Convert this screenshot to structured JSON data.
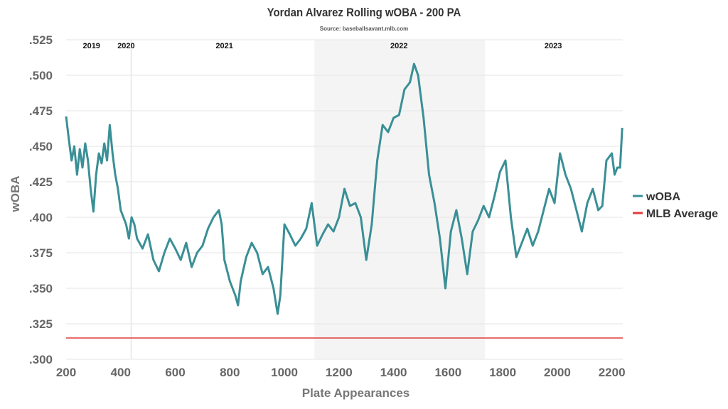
{
  "chart_data": {
    "type": "line",
    "title": "Yordan Alvarez Rolling wOBA - 200 PA",
    "subtitle": "Source: baseballsavant.mlb.com",
    "xlabel": "Plate Appearances",
    "ylabel": "wOBA",
    "xlim": [
      200,
      2240
    ],
    "ylim": [
      0.3,
      0.525
    ],
    "xticks": [
      200,
      400,
      600,
      800,
      1000,
      1200,
      1400,
      1600,
      1800,
      2000,
      2200
    ],
    "yticks": [
      0.3,
      0.325,
      0.35,
      0.375,
      0.4,
      0.425,
      0.45,
      0.475,
      0.5,
      0.525
    ],
    "ytick_labels": [
      ".300",
      ".325",
      ".350",
      ".375",
      ".400",
      ".425",
      ".450",
      ".475",
      ".500",
      ".525"
    ],
    "grid": "horizontal",
    "legend": "right",
    "season_labels": [
      {
        "label": "2019",
        "x": 293
      },
      {
        "label": "2020",
        "x": 420
      },
      {
        "label": "2021",
        "x": 780
      },
      {
        "label": "2022",
        "x": 1420
      },
      {
        "label": "2023",
        "x": 1985
      }
    ],
    "shaded_ranges": [
      {
        "from": 436,
        "to": 442,
        "color": "#eeeeee"
      },
      {
        "from": 1110,
        "to": 1735,
        "color": "#f4f4f4"
      }
    ],
    "series": [
      {
        "name": "wOBA",
        "color": "#3a8f96",
        "points": [
          [
            200,
            0.471
          ],
          [
            210,
            0.455
          ],
          [
            220,
            0.44
          ],
          [
            230,
            0.45
          ],
          [
            240,
            0.43
          ],
          [
            250,
            0.448
          ],
          [
            260,
            0.435
          ],
          [
            270,
            0.452
          ],
          [
            280,
            0.44
          ],
          [
            290,
            0.42
          ],
          [
            300,
            0.404
          ],
          [
            310,
            0.43
          ],
          [
            320,
            0.445
          ],
          [
            330,
            0.438
          ],
          [
            340,
            0.452
          ],
          [
            350,
            0.44
          ],
          [
            360,
            0.465
          ],
          [
            370,
            0.445
          ],
          [
            380,
            0.43
          ],
          [
            390,
            0.42
          ],
          [
            400,
            0.405
          ],
          [
            410,
            0.4
          ],
          [
            420,
            0.395
          ],
          [
            430,
            0.385
          ],
          [
            440,
            0.4
          ],
          [
            450,
            0.395
          ],
          [
            460,
            0.385
          ],
          [
            480,
            0.378
          ],
          [
            500,
            0.388
          ],
          [
            520,
            0.37
          ],
          [
            540,
            0.362
          ],
          [
            560,
            0.375
          ],
          [
            580,
            0.385
          ],
          [
            600,
            0.378
          ],
          [
            620,
            0.37
          ],
          [
            640,
            0.382
          ],
          [
            660,
            0.365
          ],
          [
            680,
            0.375
          ],
          [
            700,
            0.38
          ],
          [
            720,
            0.392
          ],
          [
            740,
            0.4
          ],
          [
            760,
            0.405
          ],
          [
            770,
            0.395
          ],
          [
            780,
            0.37
          ],
          [
            800,
            0.355
          ],
          [
            820,
            0.345
          ],
          [
            830,
            0.338
          ],
          [
            840,
            0.355
          ],
          [
            860,
            0.372
          ],
          [
            880,
            0.382
          ],
          [
            900,
            0.375
          ],
          [
            920,
            0.36
          ],
          [
            940,
            0.365
          ],
          [
            960,
            0.35
          ],
          [
            975,
            0.332
          ],
          [
            985,
            0.345
          ],
          [
            1000,
            0.395
          ],
          [
            1020,
            0.388
          ],
          [
            1040,
            0.38
          ],
          [
            1060,
            0.385
          ],
          [
            1080,
            0.392
          ],
          [
            1100,
            0.41
          ],
          [
            1120,
            0.38
          ],
          [
            1140,
            0.388
          ],
          [
            1160,
            0.395
          ],
          [
            1180,
            0.39
          ],
          [
            1200,
            0.4
          ],
          [
            1220,
            0.42
          ],
          [
            1240,
            0.408
          ],
          [
            1260,
            0.41
          ],
          [
            1280,
            0.4
          ],
          [
            1300,
            0.37
          ],
          [
            1320,
            0.395
          ],
          [
            1340,
            0.44
          ],
          [
            1360,
            0.465
          ],
          [
            1380,
            0.46
          ],
          [
            1400,
            0.47
          ],
          [
            1420,
            0.472
          ],
          [
            1440,
            0.49
          ],
          [
            1460,
            0.495
          ],
          [
            1475,
            0.508
          ],
          [
            1490,
            0.5
          ],
          [
            1510,
            0.47
          ],
          [
            1530,
            0.43
          ],
          [
            1550,
            0.41
          ],
          [
            1570,
            0.385
          ],
          [
            1590,
            0.35
          ],
          [
            1610,
            0.39
          ],
          [
            1630,
            0.405
          ],
          [
            1650,
            0.385
          ],
          [
            1670,
            0.36
          ],
          [
            1690,
            0.39
          ],
          [
            1710,
            0.398
          ],
          [
            1730,
            0.408
          ],
          [
            1750,
            0.4
          ],
          [
            1770,
            0.415
          ],
          [
            1790,
            0.432
          ],
          [
            1810,
            0.44
          ],
          [
            1830,
            0.4
          ],
          [
            1850,
            0.372
          ],
          [
            1870,
            0.382
          ],
          [
            1890,
            0.392
          ],
          [
            1910,
            0.38
          ],
          [
            1930,
            0.39
          ],
          [
            1950,
            0.405
          ],
          [
            1970,
            0.42
          ],
          [
            1990,
            0.41
          ],
          [
            2010,
            0.445
          ],
          [
            2030,
            0.43
          ],
          [
            2050,
            0.42
          ],
          [
            2070,
            0.405
          ],
          [
            2090,
            0.39
          ],
          [
            2110,
            0.41
          ],
          [
            2130,
            0.42
          ],
          [
            2150,
            0.405
          ],
          [
            2165,
            0.408
          ],
          [
            2180,
            0.44
          ],
          [
            2200,
            0.445
          ],
          [
            2210,
            0.43
          ],
          [
            2220,
            0.435
          ],
          [
            2230,
            0.435
          ],
          [
            2238,
            0.463
          ]
        ]
      },
      {
        "name": "MLB Average",
        "color": "#e23b3b",
        "points": [
          [
            200,
            0.315
          ],
          [
            2240,
            0.315
          ]
        ]
      }
    ]
  }
}
